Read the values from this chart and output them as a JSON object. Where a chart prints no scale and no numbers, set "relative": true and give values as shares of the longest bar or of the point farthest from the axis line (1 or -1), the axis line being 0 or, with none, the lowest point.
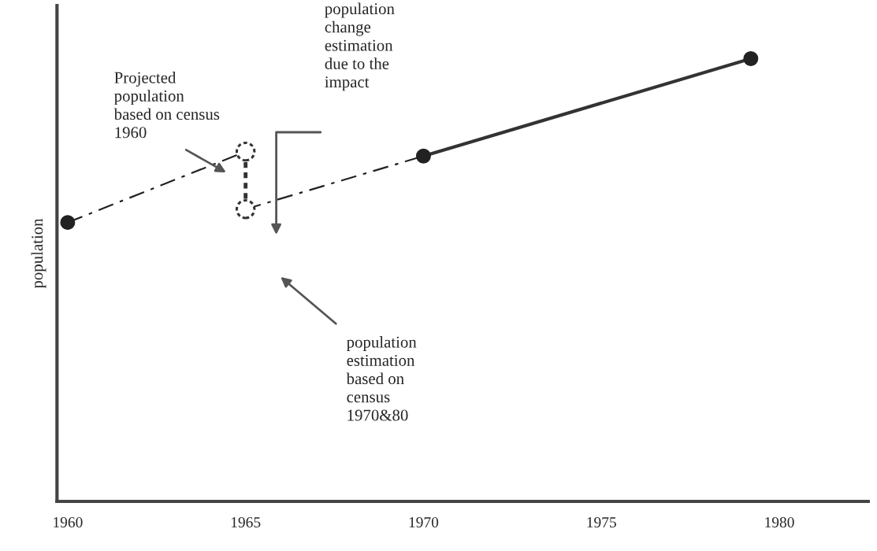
{
  "chart_data": {
    "type": "line",
    "relative": true,
    "ylabel": "population",
    "xlim": [
      1959.7,
      1982.5
    ],
    "xticks": [
      1960,
      1965,
      1970,
      1975,
      1980
    ],
    "series": [
      {
        "color": "#222222",
        "x": [
          1960,
          1965
        ],
        "values": [
          0.63,
          0.79
        ],
        "line_style": "dashed"
      },
      {
        "color": "#222222",
        "x": [
          1965,
          1970
        ],
        "values": [
          0.66,
          0.78
        ],
        "line_style": "dashed"
      },
      {
        "color": "#333333",
        "x": [
          1970,
          1979.2
        ],
        "values": [
          0.78,
          1.0
        ],
        "line_style": "solid"
      },
      {
        "color": "#333333",
        "x": [
          1965,
          1965
        ],
        "values": [
          0.66,
          0.79
        ],
        "line_style": "dotted",
        "marker": "circle"
      },
      {
        "type": "scatter",
        "color": "#222222",
        "x": [
          1960,
          1970,
          1979.2
        ],
        "values": [
          0.63,
          0.78,
          1.0
        ],
        "marker": "circle"
      }
    ],
    "annotations": [
      "Projected\npopulation\nbased on census\n1960",
      "population\nchange\nestimation\ndue to the\nimpact",
      "population\nestimation\nbased on\ncensus\n1970&80"
    ],
    "grid": false,
    "legend": false
  }
}
